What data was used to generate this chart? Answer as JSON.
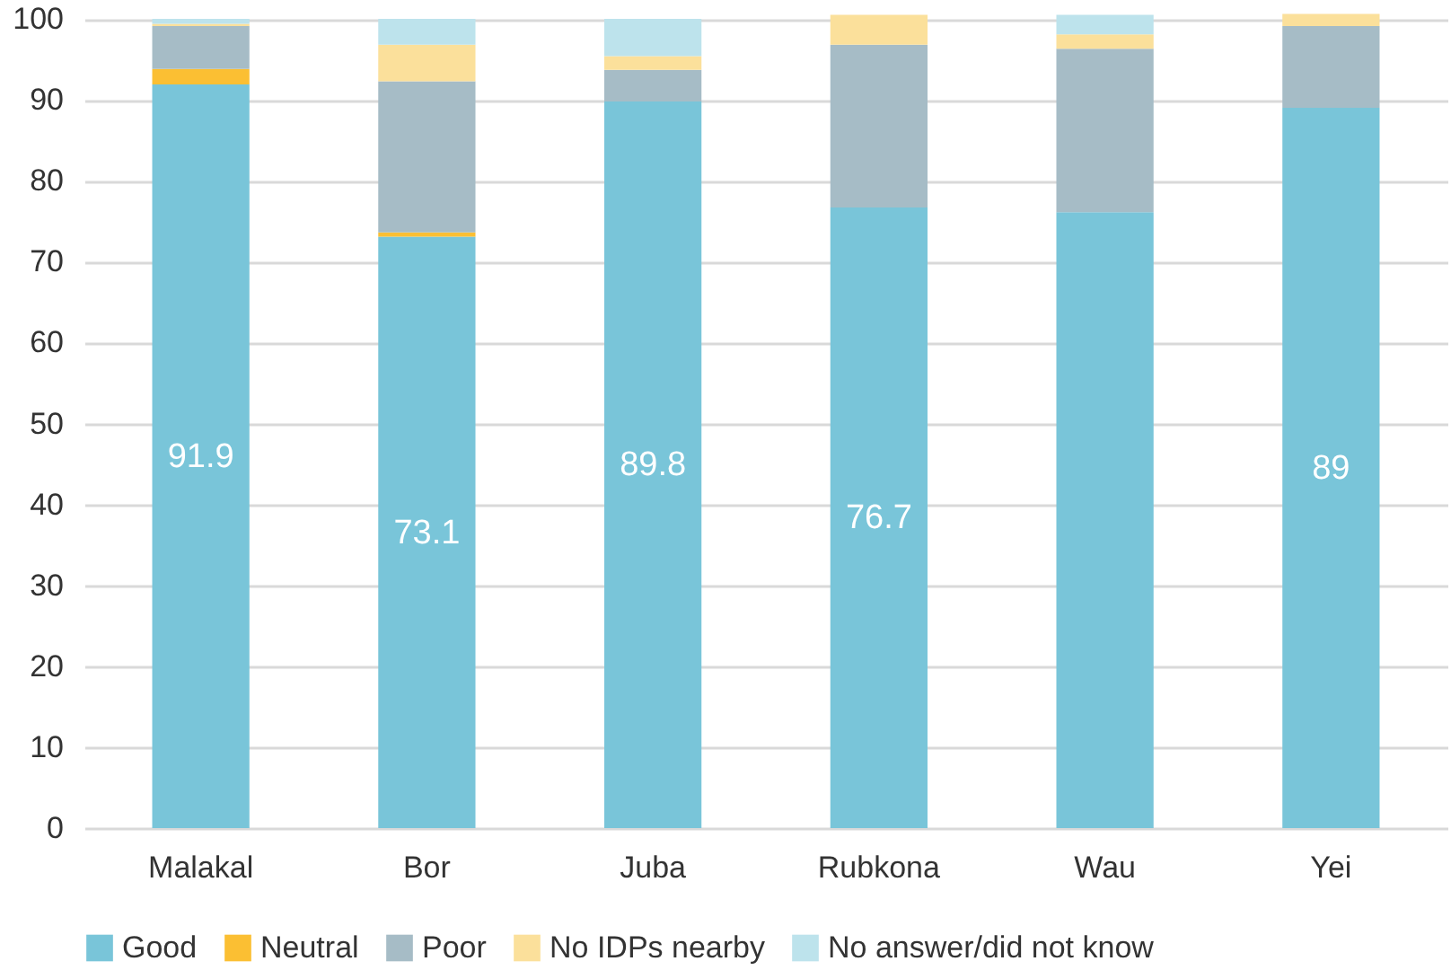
{
  "chart_data": {
    "type": "bar",
    "stacked": true,
    "categories": [
      "Malakal",
      "Bor",
      "Juba",
      "Rubkona",
      "Wau",
      "Yei"
    ],
    "series": [
      {
        "name": "Good",
        "color": "#79c5d9",
        "values": [
          91.9,
          73.1,
          89.8,
          76.7,
          76.1,
          89
        ],
        "value_labels": [
          "91.9",
          "73.1",
          "89.8",
          "76.7",
          null,
          "89"
        ]
      },
      {
        "name": "Neutral",
        "color": "#fbbf33",
        "values": [
          1.9,
          0.5,
          0,
          0,
          0,
          0
        ]
      },
      {
        "name": "Poor",
        "color": "#a6bcc6",
        "values": [
          5.3,
          18.7,
          3.9,
          20.1,
          20.2,
          10.1
        ]
      },
      {
        "name": "No IDPs nearby",
        "color": "#fbe09b",
        "values": [
          0.3,
          4.5,
          1.7,
          3.7,
          1.8,
          1.5
        ]
      },
      {
        "name": "No answer/did not know",
        "color": "#bde3ec",
        "values": [
          0.6,
          3.2,
          4.6,
          0,
          2.4,
          0
        ]
      }
    ],
    "ylim": [
      0,
      101
    ],
    "yticks": [
      0,
      10,
      20,
      30,
      40,
      50,
      60,
      70,
      80,
      90,
      100
    ],
    "grid": "y",
    "legend": "bottom"
  }
}
